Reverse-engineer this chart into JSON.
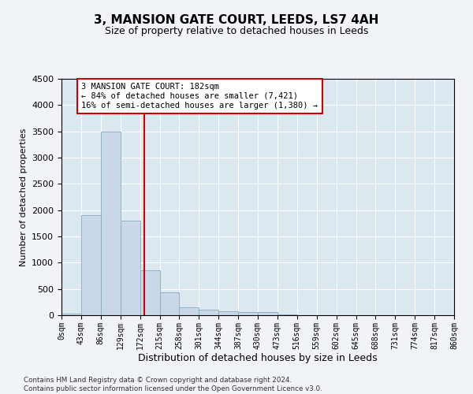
{
  "title": "3, MANSION GATE COURT, LEEDS, LS7 4AH",
  "subtitle": "Size of property relative to detached houses in Leeds",
  "xlabel": "Distribution of detached houses by size in Leeds",
  "ylabel": "Number of detached properties",
  "bin_edges": [
    0,
    43,
    86,
    129,
    172,
    215,
    258,
    301,
    344,
    387,
    430,
    473,
    516,
    559,
    602,
    645,
    688,
    731,
    774,
    817,
    860
  ],
  "bar_heights": [
    30,
    1900,
    3500,
    1800,
    850,
    440,
    150,
    100,
    75,
    60,
    55,
    10,
    5,
    3,
    2,
    1,
    1,
    0,
    0,
    0
  ],
  "bar_color": "#c8d8e8",
  "bar_edge_color": "#8aaabf",
  "vline_x": 182,
  "vline_color": "#cc0000",
  "annotation_text": "3 MANSION GATE COURT: 182sqm\n← 84% of detached houses are smaller (7,421)\n16% of semi-detached houses are larger (1,380) →",
  "annotation_box_color": "#ffffff",
  "annotation_box_edge_color": "#cc0000",
  "ylim": [
    0,
    4500
  ],
  "yticks": [
    0,
    500,
    1000,
    1500,
    2000,
    2500,
    3000,
    3500,
    4000,
    4500
  ],
  "footnote": "Contains HM Land Registry data © Crown copyright and database right 2024.\nContains public sector information licensed under the Open Government Licence v3.0.",
  "bg_color": "#f0f4f8",
  "plot_bg_color": "#dce8f0",
  "title_fontsize": 11,
  "subtitle_fontsize": 9,
  "ylabel_fontsize": 8,
  "xlabel_fontsize": 9,
  "annotation_fontsize": 7.5,
  "tick_fontsize": 7
}
